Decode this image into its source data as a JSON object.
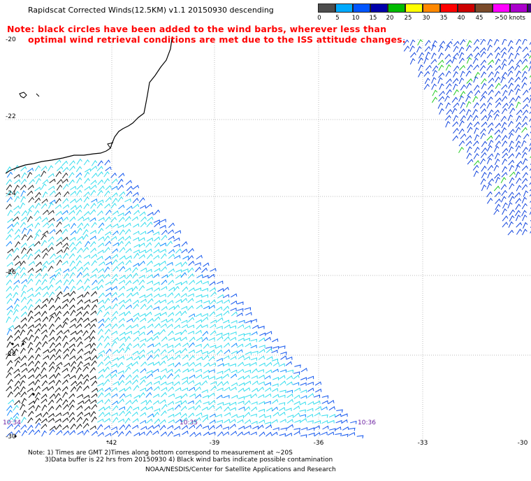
{
  "title": "Rapidscat Corrected Winds(12.5KM) v1.1 20150930 descending",
  "note_line1": "Note: black circles have been added to the wind barbs, wherever less than",
  "note_line2": "optimal wind retrieval conditions are met due to the ISS attitude changes.",
  "legend": {
    "colors": [
      "#4d4d4d",
      "#00aaff",
      "#0055ff",
      "#0000aa",
      "#00bb00",
      "#ffff00",
      "#ff8800",
      "#ff0000",
      "#cc0000",
      "#7a4a2a",
      "#ff00ff",
      "#aa00cc",
      "#440088"
    ],
    "labels": [
      "0",
      "5",
      "10",
      "15",
      "20",
      "25",
      "30",
      "35",
      "40",
      "45",
      ">50 knots"
    ]
  },
  "lat_labels": [
    "-20",
    "-22",
    "-24",
    "-26",
    "-28",
    "-30"
  ],
  "lon_labels": [
    "-42",
    "-39",
    "-36",
    "-33",
    "-30"
  ],
  "time_labels": [
    "10:34",
    "10:35",
    "10:36"
  ],
  "footer": {
    "line1": "Note: 1) Times are GMT 2)Times along bottom correspond to measurement at ~20S",
    "line2": "3)Data buffer is 22 hrs from 20150930 4) Black wind barbs indicate possible contamination",
    "line3": "NOAA/NESDIS/Center for Satellite Applications and Research"
  }
}
